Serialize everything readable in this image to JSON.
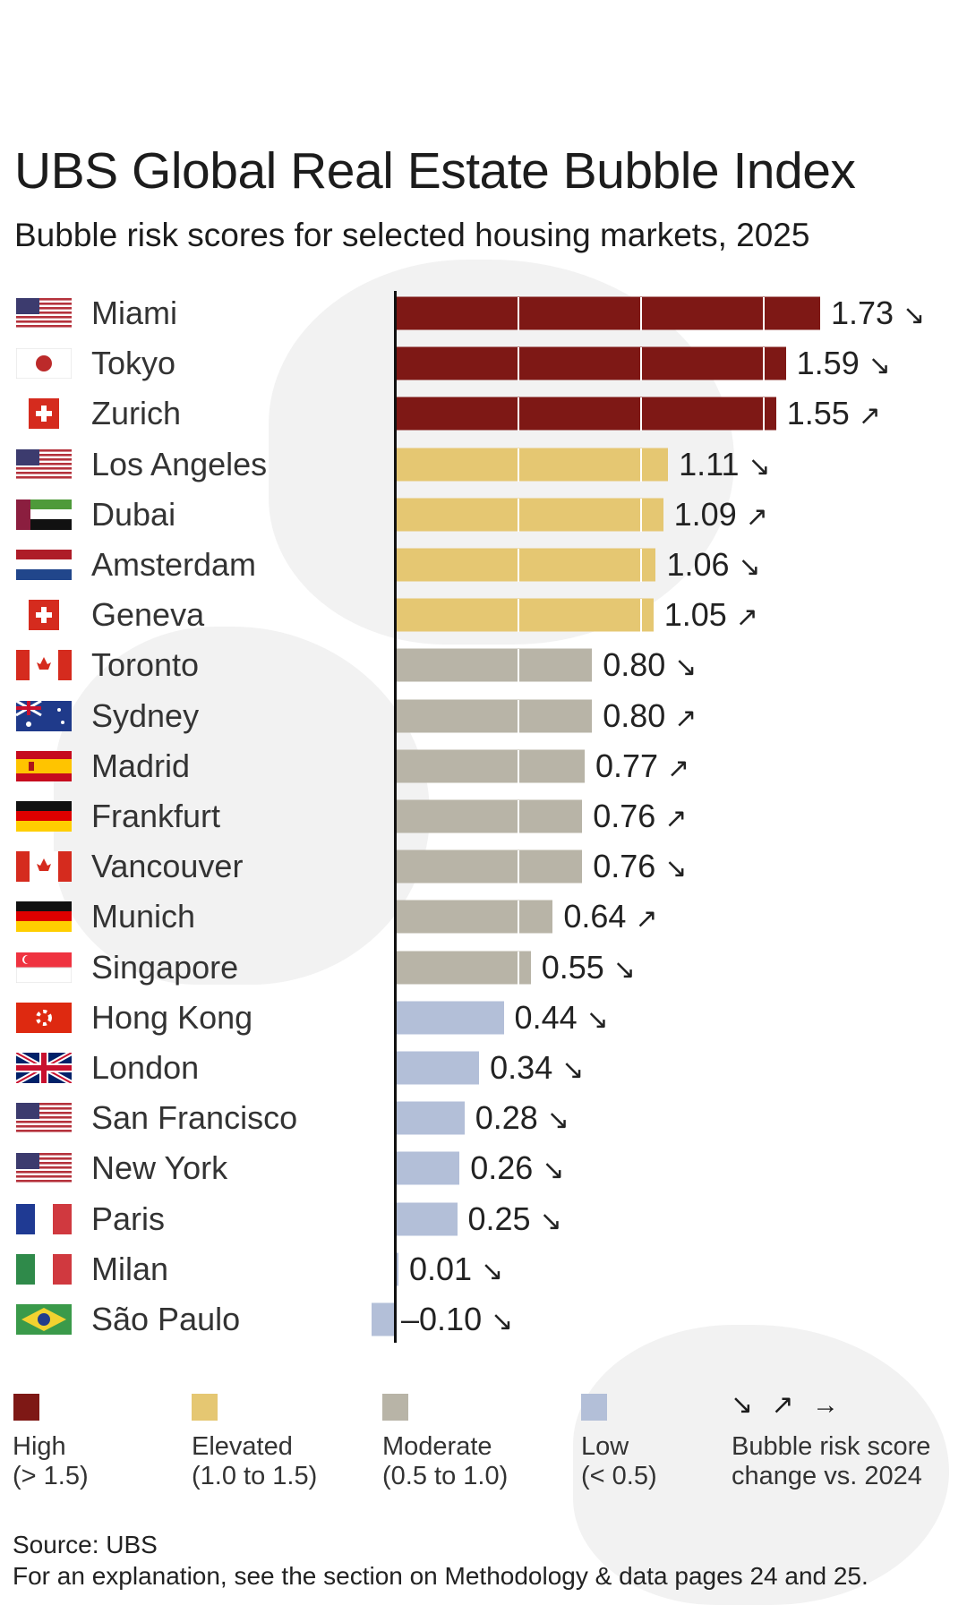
{
  "title": "UBS Global Real Estate Bubble Index",
  "subtitle": "Bubble risk scores for selected housing markets, 2025",
  "chart_data": {
    "type": "bar",
    "orientation": "horizontal",
    "title": "UBS Global Real Estate Bubble Index",
    "subtitle": "Bubble risk scores for selected housing markets, 2025",
    "xlim": [
      -0.1,
      1.8
    ],
    "categories": [
      "Miami",
      "Tokyo",
      "Zurich",
      "Los Angeles",
      "Dubai",
      "Amsterdam",
      "Geneva",
      "Toronto",
      "Sydney",
      "Madrid",
      "Frankfurt",
      "Vancouver",
      "Munich",
      "Singapore",
      "Hong Kong",
      "London",
      "San Francisco",
      "New York",
      "Paris",
      "Milan",
      "São Paulo"
    ],
    "values": [
      1.73,
      1.59,
      1.55,
      1.11,
      1.09,
      1.06,
      1.05,
      0.8,
      0.8,
      0.77,
      0.76,
      0.76,
      0.64,
      0.55,
      0.44,
      0.34,
      0.28,
      0.26,
      0.25,
      0.01,
      -0.1
    ],
    "value_labels": [
      "1.73",
      "1.59",
      "1.55",
      "1.11",
      "1.09",
      "1.06",
      "1.05",
      "0.80",
      "0.80",
      "0.77",
      "0.76",
      "0.76",
      "0.64",
      "0.55",
      "0.44",
      "0.34",
      "0.28",
      "0.26",
      "0.25",
      "0.01",
      "–0.10"
    ],
    "change": [
      "down",
      "down",
      "up",
      "down",
      "up",
      "down",
      "up",
      "down",
      "up",
      "up",
      "up",
      "down",
      "up",
      "down",
      "down",
      "down",
      "down",
      "down",
      "down",
      "down",
      "down"
    ],
    "flags": [
      "us",
      "jp",
      "ch",
      "us",
      "ae",
      "nl",
      "ch",
      "ca",
      "au",
      "es",
      "de",
      "ca",
      "de",
      "sg",
      "hk",
      "gb",
      "us",
      "us",
      "fr",
      "it",
      "br"
    ],
    "gridlines": [
      0.5,
      1.0,
      1.5
    ]
  },
  "legend": {
    "items": [
      {
        "label": "High",
        "range": "(> 1.5)",
        "color": "#7e1815"
      },
      {
        "label": "Elevated",
        "range": "(1.0 to 1.5)",
        "color": "#e5c772"
      },
      {
        "label": "Moderate",
        "range": "(0.5 to 1.0)",
        "color": "#b8b4a7"
      },
      {
        "label": "Low",
        "range": "(< 0.5)",
        "color": "#b3bfd8"
      }
    ],
    "arrows": "↘ ↗ →",
    "arrows_label_1": "Bubble risk score",
    "arrows_label_2": "change vs. 2024"
  },
  "arrow_glyphs": {
    "up": "↗",
    "down": "↘",
    "flat": "→"
  },
  "source": "Source: UBS",
  "footnote": "For an explanation, see the section on Methodology & data pages 24 and 25."
}
